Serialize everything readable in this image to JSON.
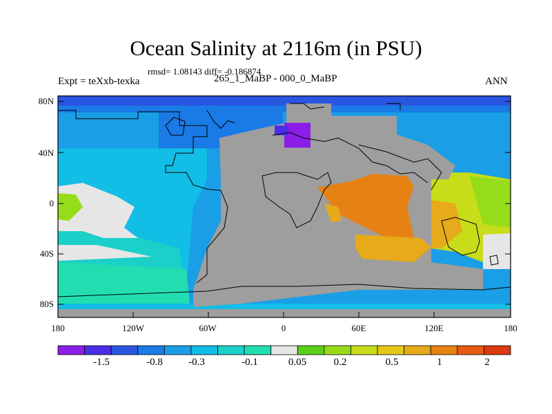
{
  "title": "Ocean Salinity at 2116m (in PSU)",
  "stats": "rmsd= 1.08143 diff= -0.186874",
  "expt": "Expt = teXxb-texka",
  "diff_line": "265_1_MaBP - 000_0_MaBP",
  "season": "ANN",
  "lat_ticks": [
    "80N",
    "40N",
    "0",
    "40S",
    "80S"
  ],
  "lon_ticks": [
    "180",
    "120W",
    "60W",
    "0",
    "60E",
    "120E",
    "180"
  ],
  "colorbar": {
    "labels": [
      "-1.5",
      "-0.8",
      "-0.3",
      "-0.1",
      "0.05",
      "0.2",
      "0.5",
      "1",
      "2"
    ],
    "colors": [
      "#8a1ee6",
      "#4a2ee6",
      "#2a55e0",
      "#1a7ae6",
      "#1a9ee6",
      "#12bde6",
      "#1ad0c8",
      "#22ddb0",
      "#e6e6e6",
      "#5ad01a",
      "#96dc1a",
      "#c8dc1a",
      "#e6c81a",
      "#e6aa1a",
      "#e68214",
      "#e65a10",
      "#dc3a10"
    ]
  },
  "colors": {
    "land": "#9e9e9e",
    "coast": "#000000"
  }
}
